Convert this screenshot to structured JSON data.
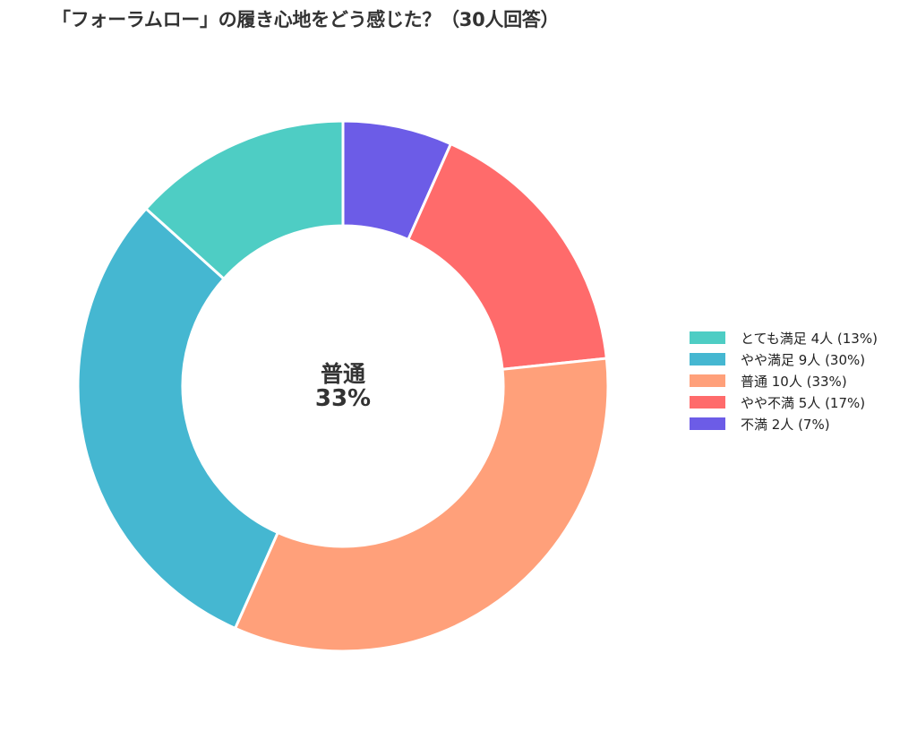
{
  "title": "「フォーラムロー」の履き心地をどう感じた？（30人回答）",
  "center": {
    "category": "普通",
    "percent": "33%"
  },
  "legend": [
    {
      "label": "とても満足  4人 (13%)",
      "color": "#4ECDC4"
    },
    {
      "label": "やや満足  9人 (30%)",
      "color": "#45B7D1"
    },
    {
      "label": "普通  10人 (33%)",
      "color": "#FFA07A"
    },
    {
      "label": "やや不満  5人 (17%)",
      "color": "#FF6B6B"
    },
    {
      "label": "不満  2人 (7%)",
      "color": "#6C5CE7"
    }
  ],
  "chart_data": {
    "type": "pie",
    "subtype": "donut",
    "title": "「フォーラムロー」の履き心地をどう感じた？（30人回答）",
    "total": 30,
    "categories": [
      "とても満足",
      "やや満足",
      "普通",
      "やや不満",
      "不満"
    ],
    "values": [
      4,
      9,
      10,
      5,
      2
    ],
    "percentages": [
      13,
      30,
      33,
      17,
      7
    ],
    "colors": [
      "#4ECDC4",
      "#45B7D1",
      "#FFA07A",
      "#FF6B6B",
      "#6C5CE7"
    ],
    "center_annotation": "普通 33%",
    "legend_position": "right",
    "start_angle": "top",
    "direction": "counterclockwise-from-top for first category (reversed order clockwise)"
  }
}
